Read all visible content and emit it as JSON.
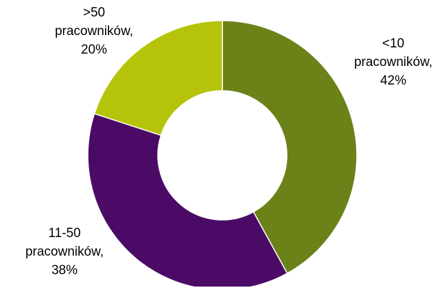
{
  "chart_data": {
    "type": "donut",
    "series": [
      {
        "values": [
          42,
          38,
          20
        ],
        "labels": [
          {
            "lines": [
              "<10",
              "pracowników,",
              "42%"
            ]
          },
          {
            "lines": [
              "11-50",
              "pracowników,",
              "38%"
            ]
          },
          {
            "lines": [
              ">50",
              "pracowników,",
              "20%"
            ]
          }
        ]
      }
    ],
    "categories": [
      "<10 pracowników",
      "11-50 pracowników",
      ">50 pracowników"
    ],
    "colors": [
      "#6b8219",
      "#4b0a66",
      "#b5c40a"
    ],
    "start_angle": "12 o'clock",
    "direction": "clockwise",
    "legend": "none",
    "data_labels": "outside"
  }
}
